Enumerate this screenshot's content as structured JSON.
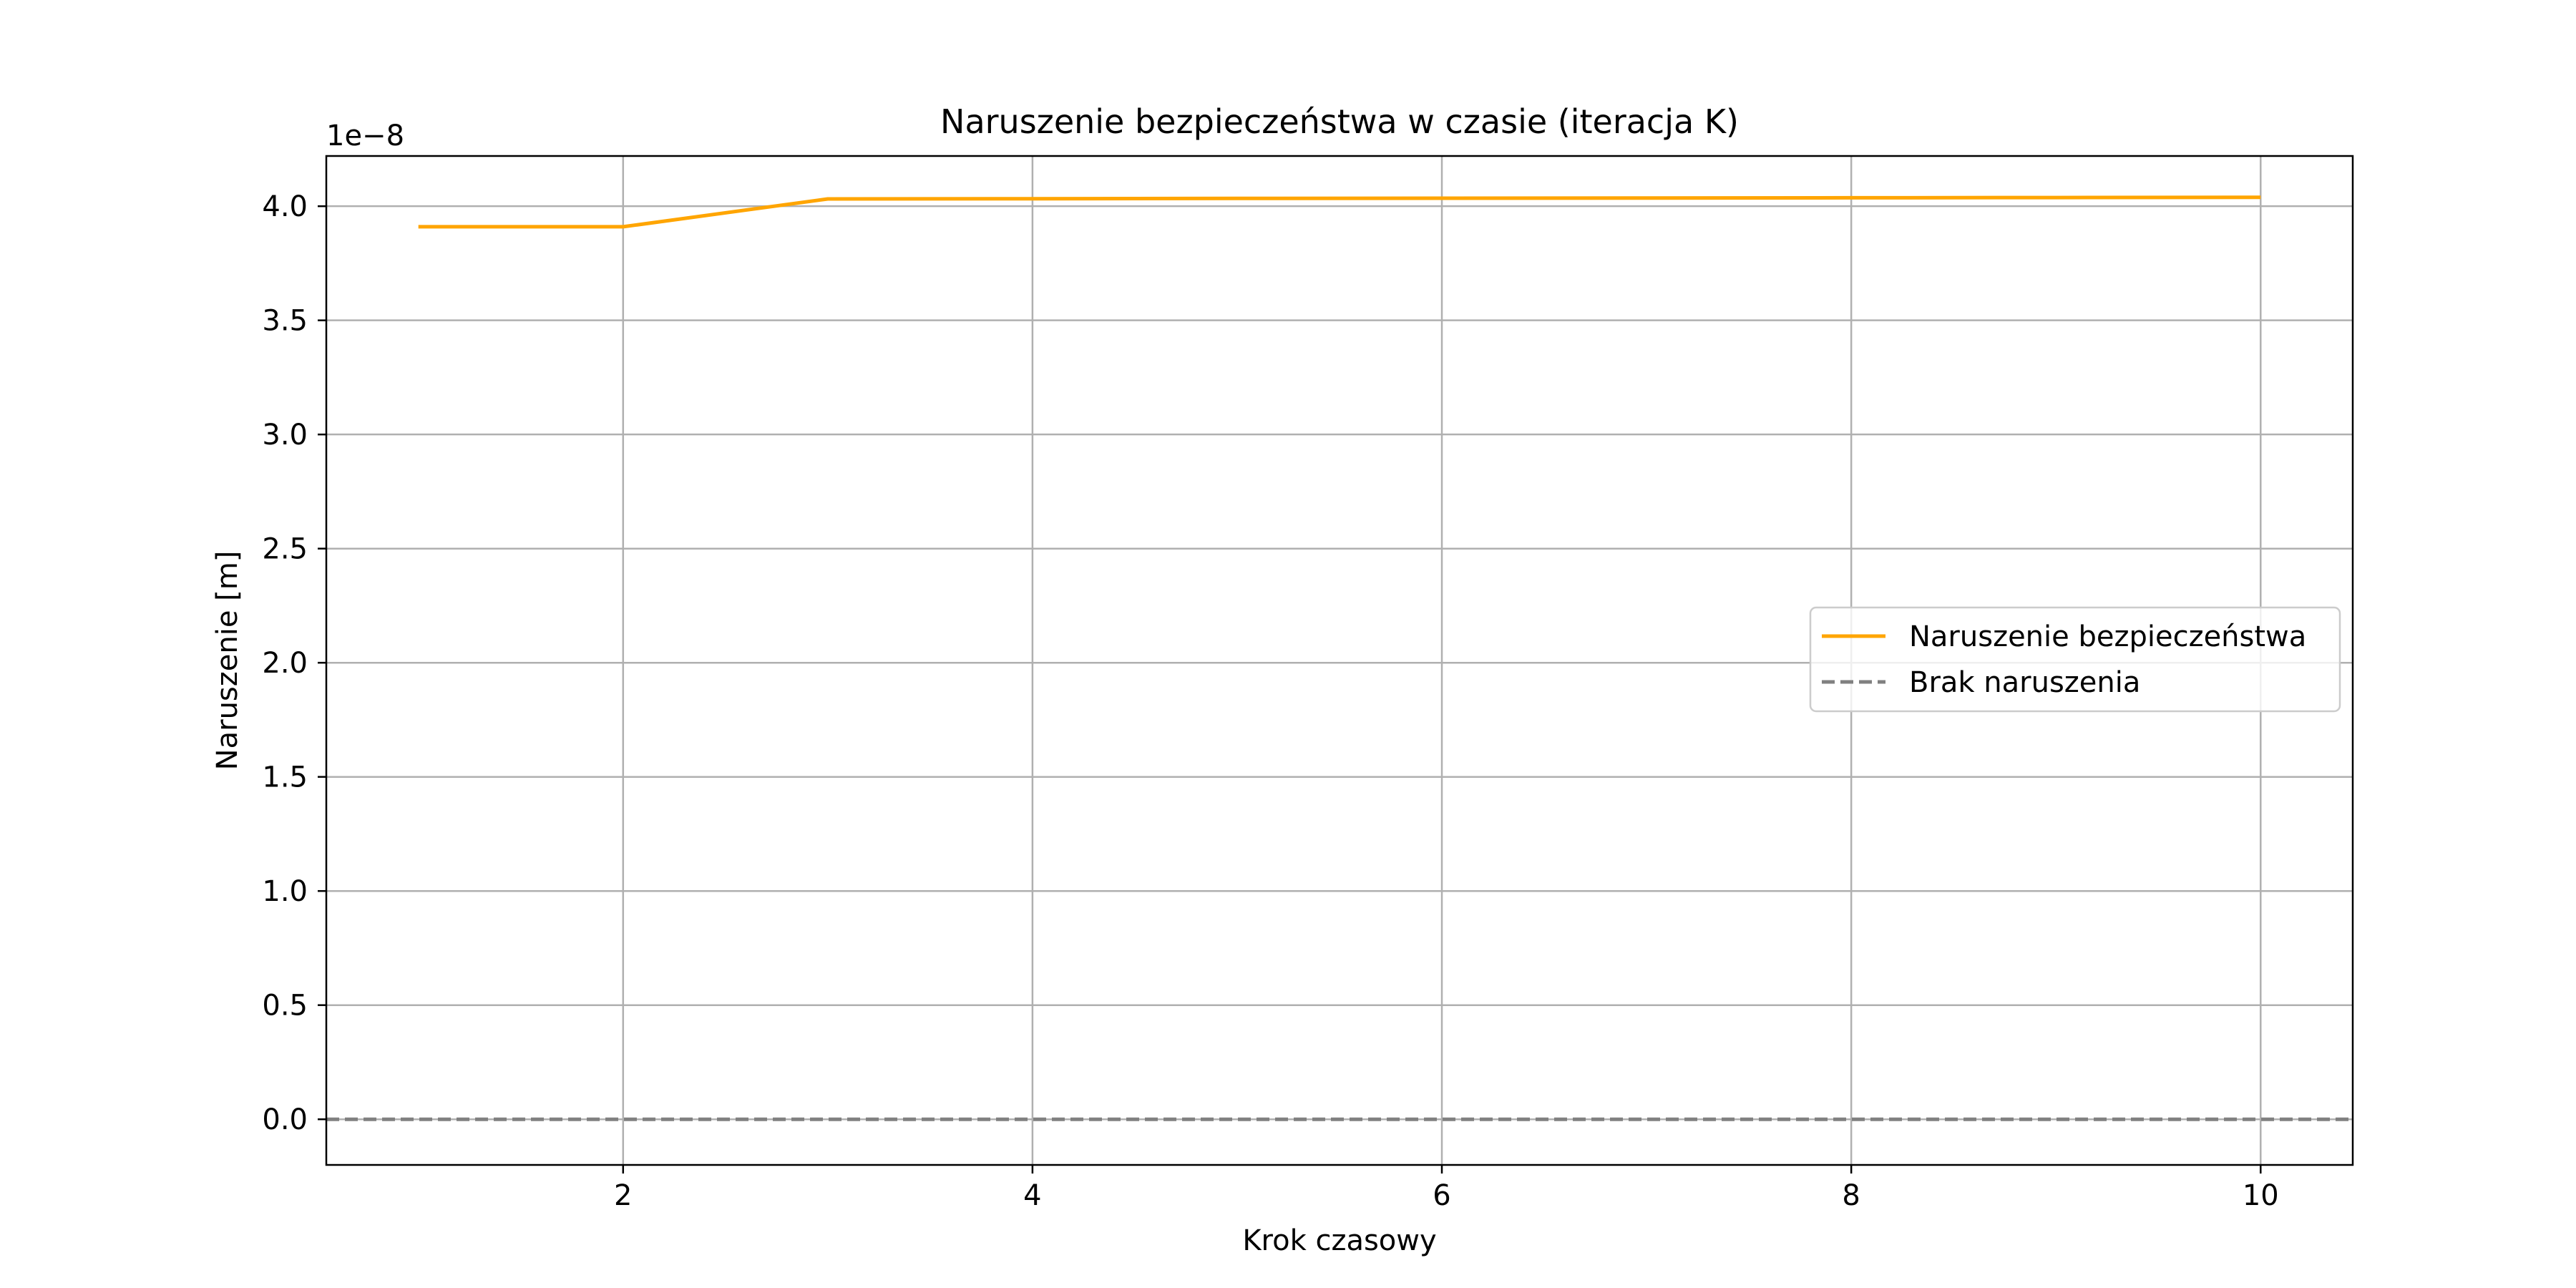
{
  "chart_data": {
    "type": "line",
    "title": "Naruszenie bezpieczeństwa w czasie (iteracja K)",
    "xlabel": "Krok czasowy",
    "ylabel": "Naruszenie [m]",
    "y_offset_label": "1e−8",
    "xlim": [
      0.55,
      10.45
    ],
    "ylim": [
      -2e-09,
      4.22e-08
    ],
    "x_ticks": [
      2,
      4,
      6,
      8,
      10
    ],
    "y_ticks": [
      0,
      5e-09,
      1e-08,
      1.5e-08,
      2e-08,
      2.5e-08,
      3e-08,
      3.5e-08,
      4e-08
    ],
    "x_tick_labels": [
      "2",
      "4",
      "6",
      "8",
      "10"
    ],
    "y_tick_labels": [
      "0.0",
      "0.5",
      "1.0",
      "1.5",
      "2.0",
      "2.5",
      "3.0",
      "3.5",
      "4.0"
    ],
    "grid": true,
    "legend_position": "center-right",
    "series": [
      {
        "name": "Naruszenie bezpieczeństwa",
        "color": "#ffa500",
        "style": "solid",
        "x": [
          1,
          2,
          3,
          4,
          5,
          6,
          7,
          8,
          9,
          10
        ],
        "values": [
          3.91e-08,
          3.91e-08,
          4.032e-08,
          4.033e-08,
          4.034e-08,
          4.035e-08,
          4.036e-08,
          4.037e-08,
          4.038e-08,
          4.039e-08
        ]
      },
      {
        "name": "Brak naruszenia",
        "color": "#808080",
        "style": "dashed",
        "type": "hline",
        "value": 0
      }
    ]
  }
}
